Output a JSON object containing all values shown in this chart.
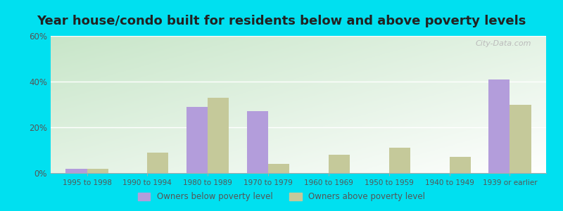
{
  "title": "Year house/condo built for residents below and above poverty levels",
  "categories": [
    "1995 to 1998",
    "1990 to 1994",
    "1980 to 1989",
    "1970 to 1979",
    "1960 to 1969",
    "1950 to 1959",
    "1940 to 1949",
    "1939 or earlier"
  ],
  "below_poverty": [
    2,
    0,
    29,
    27,
    0,
    0,
    0,
    41
  ],
  "above_poverty": [
    2,
    9,
    33,
    4,
    8,
    11,
    7,
    30
  ],
  "below_color": "#b39ddb",
  "above_color": "#c5c99a",
  "ylim": [
    0,
    60
  ],
  "yticks": [
    0,
    20,
    40,
    60
  ],
  "ytick_labels": [
    "0%",
    "20%",
    "40%",
    "60%"
  ],
  "outer_bg": "#00e0f0",
  "bar_width": 0.35,
  "legend_below": "Owners below poverty level",
  "legend_above": "Owners above poverty level",
  "grid_color": "#ffffff",
  "title_fontsize": 13,
  "watermark": "City-Data.com",
  "bg_top_left": "#c8e6c9",
  "bg_bottom_right": "#f5ffe8"
}
